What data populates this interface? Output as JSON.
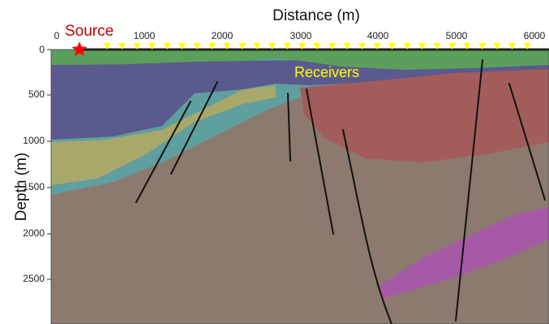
{
  "title": "Distance (m)",
  "y_axis_label": "Depth (m)",
  "x_ticks": [
    "0",
    "1000",
    "2000",
    "3000",
    "4000",
    "5000",
    "6000"
  ],
  "y_ticks": [
    "0",
    "500",
    "1000",
    "1500",
    "2000",
    "2500"
  ],
  "source_label": "Source",
  "receivers_label": "Receivers",
  "colors": {
    "source_star": "#ff0000",
    "receiver_markers": "#ffff00",
    "surface_line": "#222222",
    "near_surface_layer": "#5c9e5c",
    "purple_layer": "#5b5a8e",
    "olive_layer": "#a8a86a",
    "red_layer": "#a35c5c",
    "brown_layer": "#8c7a6e",
    "magenta_layer": "#a65aa6",
    "basement": "#5f9fa0",
    "faults": "#111111"
  }
}
